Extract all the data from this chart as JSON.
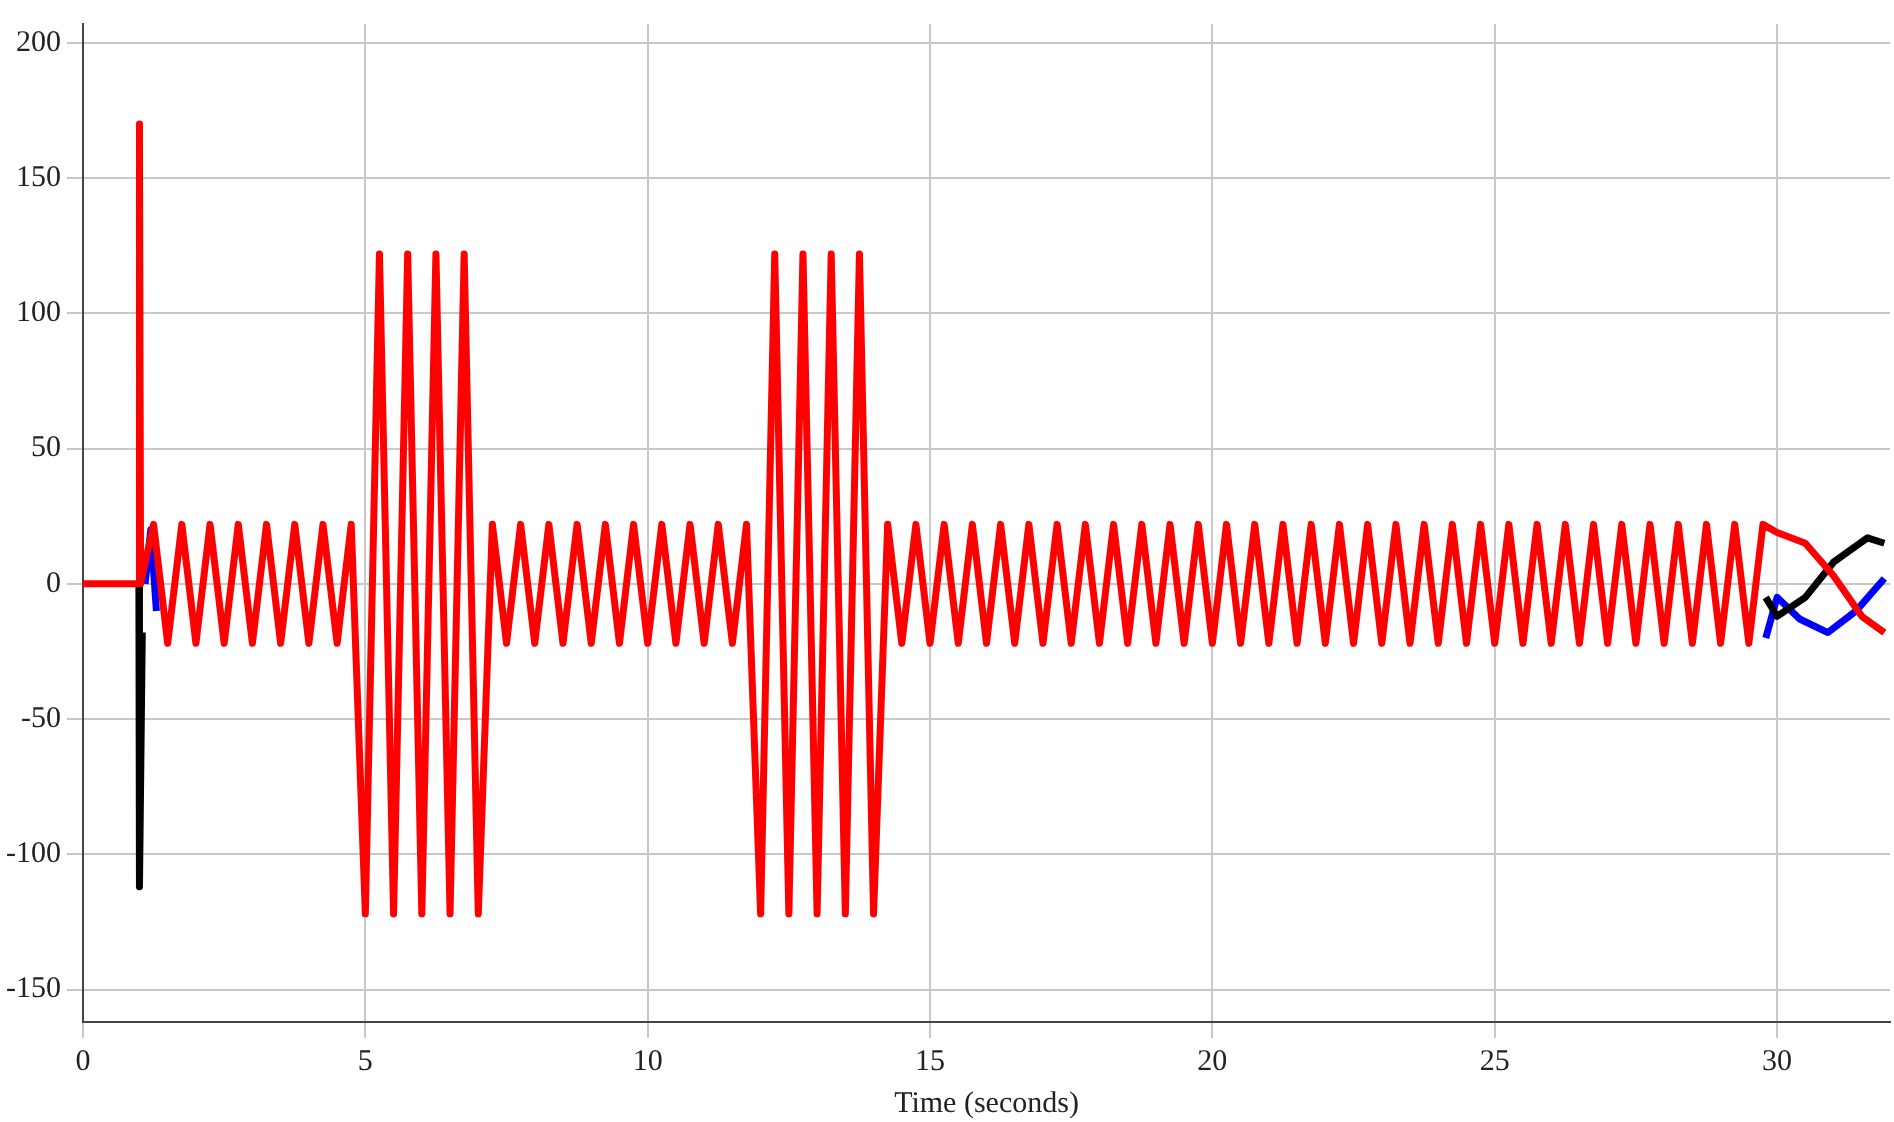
{
  "chart_data": {
    "type": "line",
    "xlabel": "Time (seconds)",
    "xlim": [
      0,
      32
    ],
    "xticks": [
      0,
      5,
      10,
      15,
      20,
      25,
      30
    ],
    "ylim": [
      -162,
      207
    ],
    "yticks": [
      -150,
      -100,
      -50,
      0,
      50,
      100,
      150,
      200
    ],
    "grid": true,
    "legend": false,
    "marker": "none",
    "line_style": "solid",
    "series": [
      {
        "color": "#ff0000",
        "x": [
          0,
          0.98,
          1,
          1.02,
          1.25,
          1.5,
          1.75,
          2,
          2.25,
          2.5,
          2.75,
          3,
          3.25,
          3.5,
          3.75,
          4,
          4.25,
          4.5,
          4.75,
          5,
          5.25,
          5.5,
          5.75,
          6,
          6.25,
          6.5,
          6.75,
          7,
          7.25,
          7.5,
          7.75,
          8,
          8.25,
          8.5,
          8.75,
          9,
          9.25,
          9.5,
          9.75,
          10,
          10.25,
          10.5,
          10.75,
          11,
          11.25,
          11.5,
          11.75,
          12,
          12.25,
          12.5,
          12.75,
          13,
          13.25,
          13.5,
          13.75,
          14,
          14.25,
          14.5,
          14.75,
          15,
          15.25,
          15.5,
          15.75,
          16,
          16.25,
          16.5,
          16.75,
          17,
          17.25,
          17.5,
          17.75,
          18,
          18.25,
          18.5,
          18.75,
          19,
          19.25,
          19.5,
          19.75,
          20,
          20.25,
          20.5,
          20.75,
          21,
          21.25,
          21.5,
          21.75,
          22,
          22.25,
          22.5,
          22.75,
          23,
          23.25,
          23.5,
          23.75,
          24,
          24.25,
          24.5,
          24.75,
          25,
          25.25,
          25.5,
          25.75,
          26,
          26.25,
          26.5,
          26.75,
          27,
          27.25,
          27.5,
          27.75,
          28,
          28.25,
          28.5,
          28.75,
          29,
          29.25,
          29.5,
          29.75,
          30,
          30.5,
          31,
          31.5,
          31.9
        ],
        "values": [
          0,
          0,
          170,
          0,
          22,
          -22,
          22,
          -22,
          22,
          -22,
          22,
          -22,
          22,
          -22,
          22,
          -22,
          22,
          -22,
          22,
          -122,
          122,
          -122,
          122,
          -122,
          122,
          -122,
          122,
          -122,
          22,
          -22,
          22,
          -22,
          22,
          -22,
          22,
          -22,
          22,
          -22,
          22,
          -22,
          22,
          -22,
          22,
          -22,
          22,
          -22,
          22,
          -122,
          122,
          -122,
          122,
          -122,
          122,
          -122,
          122,
          -122,
          22,
          -22,
          22,
          -22,
          22,
          -22,
          22,
          -22,
          22,
          -22,
          22,
          -22,
          22,
          -22,
          22,
          -22,
          22,
          -22,
          22,
          -22,
          22,
          -22,
          22,
          -22,
          22,
          -22,
          22,
          -22,
          22,
          -22,
          22,
          -22,
          22,
          -22,
          22,
          -22,
          22,
          -22,
          22,
          -22,
          22,
          -22,
          22,
          -22,
          22,
          -22,
          22,
          -22,
          22,
          -22,
          22,
          -22,
          22,
          -22,
          22,
          -22,
          22,
          -22,
          22,
          -22,
          22,
          -22,
          22,
          19,
          15,
          3,
          -12,
          -18
        ]
      },
      {
        "color": "#000000",
        "x": [
          0.99,
          1,
          1.05,
          1.1,
          29.8,
          30,
          30.5,
          31,
          31.6,
          31.9
        ],
        "values": [
          0,
          -112,
          -18,
          null,
          -5,
          -12,
          -5,
          8,
          17,
          15
        ]
      },
      {
        "color": "#0000ff",
        "x": [
          1.1,
          1.2,
          1.3,
          1.4,
          29.8,
          30,
          30.4,
          30.9,
          31.4,
          31.9
        ],
        "values": [
          0,
          20,
          -10,
          null,
          -20,
          -5,
          -13,
          -18,
          -10,
          2
        ]
      }
    ]
  }
}
